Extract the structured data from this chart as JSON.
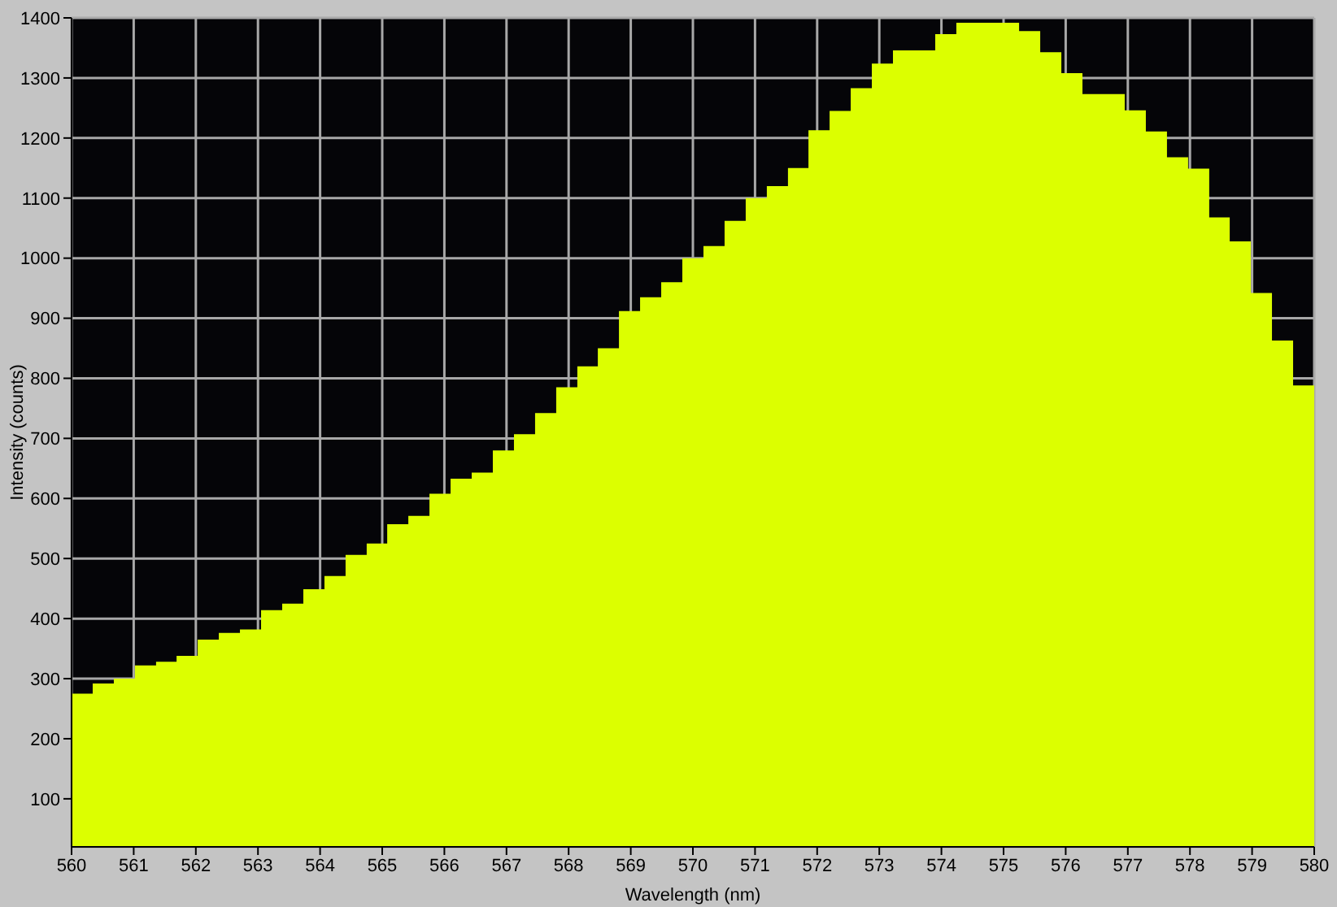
{
  "chart_data": {
    "type": "histogram",
    "xlabel": "Wavelength (nm)",
    "ylabel": "Intensity (counts)",
    "bins": [
      560.0,
      560.34,
      560.68,
      561.02,
      561.36,
      561.69,
      562.03,
      562.37,
      562.71,
      563.05,
      563.39,
      563.73,
      564.07,
      564.41,
      564.75,
      565.08,
      565.42,
      565.76,
      566.1,
      566.44,
      566.78,
      567.12,
      567.46,
      567.8,
      568.14,
      568.47,
      568.81,
      569.15,
      569.49,
      569.83,
      570.17,
      570.51,
      570.85,
      571.19,
      571.53,
      571.86,
      572.2,
      572.54,
      572.88,
      573.22,
      573.56,
      573.9,
      574.24,
      574.58,
      574.92,
      575.25,
      575.59,
      575.93,
      576.27,
      576.61,
      576.95,
      577.29,
      577.63,
      577.97,
      578.31,
      578.64,
      578.98,
      579.32,
      579.66,
      580.0
    ],
    "values": [
      275,
      292,
      300,
      322,
      328,
      338,
      365,
      376,
      382,
      414,
      425,
      449,
      471,
      506,
      525,
      557,
      571,
      608,
      633,
      643,
      680,
      707,
      742,
      785,
      820,
      850,
      912,
      935,
      960,
      1000,
      1020,
      1062,
      1100,
      1120,
      1150,
      1213,
      1245,
      1283,
      1324,
      1346,
      1346,
      1373,
      1392,
      1392,
      1392,
      1378,
      1343,
      1308,
      1273,
      1273,
      1246,
      1211,
      1168,
      1149,
      1068,
      1028,
      942,
      863,
      788
    ],
    "color": "#dcff00",
    "xlim": [
      560,
      580
    ],
    "xticks": [
      560,
      561,
      562,
      563,
      564,
      565,
      566,
      567,
      568,
      569,
      570,
      571,
      572,
      573,
      574,
      575,
      576,
      577,
      578,
      579,
      580
    ],
    "ylim": [
      20,
      1400
    ],
    "yticks": [
      100,
      200,
      300,
      400,
      500,
      600,
      700,
      800,
      900,
      1000,
      1100,
      1200,
      1300,
      1400
    ],
    "grid": true
  }
}
